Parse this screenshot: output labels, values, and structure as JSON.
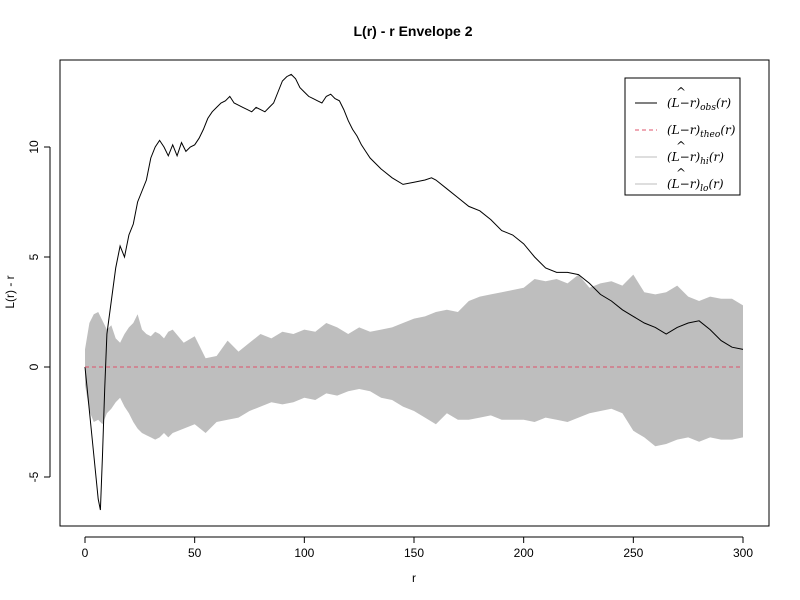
{
  "chart_data": {
    "type": "line",
    "title": "L(r) - r Envelope 2",
    "xlabel": "r",
    "ylabel": "L(r) - r",
    "xlim": [
      0,
      300
    ],
    "ylim": [
      -7,
      14
    ],
    "x_ticks": [
      0,
      50,
      100,
      150,
      200,
      250,
      300
    ],
    "x_tick_labels": [
      "0",
      "50",
      "100",
      "150",
      "200",
      "250",
      "300"
    ],
    "y_ticks": [
      -5,
      0,
      5,
      10
    ],
    "y_tick_labels": [
      "-5",
      "0",
      "5",
      "10"
    ],
    "legend": {
      "position": "top-right",
      "entries": [
        {
          "label_main": "(L",
          "label_hat": "^",
          "label_dash": "−r)",
          "label_sub": "obs",
          "label_tail": "(r)",
          "color": "#000000",
          "style": "solid"
        },
        {
          "label_main": "(L",
          "label_hat": "",
          "label_dash": "−r)",
          "label_sub": "theo",
          "label_tail": "(r)",
          "color": "#df536b",
          "style": "dashed"
        },
        {
          "label_main": "(L",
          "label_hat": "^",
          "label_dash": "−r)",
          "label_sub": "hi",
          "label_tail": "(r)",
          "color": "#bebebe",
          "style": "solid"
        },
        {
          "label_main": "(L",
          "label_hat": "^",
          "label_dash": "−r)",
          "label_sub": "lo",
          "label_tail": "(r)",
          "color": "#bebebe",
          "style": "solid"
        }
      ]
    },
    "series": [
      {
        "name": "obs",
        "color": "#000000",
        "style": "solid",
        "x": [
          0,
          2,
          4,
          6,
          7,
          8,
          9,
          10,
          12,
          14,
          16,
          18,
          20,
          22,
          24,
          26,
          28,
          30,
          32,
          34,
          36,
          38,
          40,
          42,
          44,
          46,
          48,
          50,
          52,
          54,
          56,
          58,
          60,
          62,
          64,
          66,
          68,
          70,
          72,
          74,
          76,
          78,
          80,
          82,
          84,
          86,
          88,
          90,
          92,
          94,
          96,
          98,
          100,
          102,
          104,
          106,
          108,
          110,
          112,
          114,
          116,
          118,
          120,
          122,
          124,
          126,
          128,
          130,
          135,
          140,
          145,
          150,
          155,
          158,
          160,
          165,
          170,
          175,
          180,
          185,
          190,
          195,
          200,
          205,
          210,
          215,
          220,
          225,
          230,
          235,
          240,
          245,
          250,
          255,
          260,
          265,
          270,
          275,
          280,
          285,
          290,
          295,
          300
        ],
        "y": [
          0,
          -2,
          -4,
          -6,
          -6.5,
          -4,
          -1,
          1.5,
          3,
          4.5,
          5.5,
          5,
          6,
          6.5,
          7.5,
          8,
          8.5,
          9.5,
          10,
          10.3,
          10,
          9.6,
          10.1,
          9.6,
          10.2,
          9.8,
          10,
          10.1,
          10.4,
          10.8,
          11.3,
          11.6,
          11.8,
          12,
          12.1,
          12.3,
          12,
          11.9,
          11.8,
          11.7,
          11.6,
          11.8,
          11.7,
          11.6,
          11.8,
          12,
          12.5,
          13,
          13.2,
          13.3,
          13.1,
          12.7,
          12.5,
          12.3,
          12.2,
          12.1,
          12,
          12.3,
          12.4,
          12.2,
          12.1,
          11.7,
          11.2,
          10.8,
          10.5,
          10.1,
          9.8,
          9.5,
          9,
          8.6,
          8.3,
          8.4,
          8.5,
          8.6,
          8.5,
          8.1,
          7.7,
          7.3,
          7.1,
          6.7,
          6.2,
          6,
          5.6,
          5,
          4.5,
          4.3,
          4.3,
          4.2,
          3.8,
          3.3,
          3,
          2.6,
          2.3,
          2,
          1.8,
          1.5,
          1.8,
          2,
          2.1,
          1.7,
          1.2,
          0.9,
          0.8
        ]
      },
      {
        "name": "theo",
        "color": "#df536b",
        "style": "dashed",
        "x": [
          0,
          300
        ],
        "y": [
          0,
          0
        ]
      }
    ],
    "envelope": {
      "color": "#bebebe",
      "x": [
        0,
        2,
        4,
        6,
        8,
        10,
        12,
        14,
        16,
        18,
        20,
        22,
        24,
        26,
        28,
        30,
        32,
        34,
        36,
        38,
        40,
        45,
        50,
        55,
        60,
        65,
        70,
        75,
        80,
        85,
        90,
        95,
        100,
        105,
        110,
        115,
        120,
        125,
        130,
        135,
        140,
        145,
        150,
        155,
        160,
        165,
        170,
        175,
        180,
        185,
        190,
        195,
        200,
        205,
        210,
        215,
        220,
        225,
        230,
        235,
        240,
        245,
        250,
        255,
        260,
        265,
        270,
        275,
        280,
        285,
        290,
        295,
        300
      ],
      "hi": [
        0.8,
        2,
        2.4,
        2.5,
        2.1,
        1.7,
        1.9,
        1.3,
        1.1,
        1.5,
        1.8,
        2,
        2.4,
        1.7,
        1.5,
        1.4,
        1.6,
        1.5,
        1.3,
        1.6,
        1.7,
        1.1,
        1.4,
        0.4,
        0.5,
        1.2,
        0.7,
        1.1,
        1.5,
        1.3,
        1.6,
        1.5,
        1.7,
        1.6,
        2,
        1.8,
        1.5,
        1.8,
        1.6,
        1.7,
        1.8,
        2,
        2.2,
        2.3,
        2.5,
        2.6,
        2.5,
        3,
        3.2,
        3.3,
        3.4,
        3.5,
        3.6,
        4,
        3.9,
        4,
        3.8,
        4.2,
        3.6,
        3.8,
        3.9,
        3.7,
        4.2,
        3.4,
        3.3,
        3.4,
        3.7,
        3.2,
        3,
        3.2,
        3.1,
        3.1,
        2.8
      ],
      "lo": [
        -0.8,
        -2,
        -2.5,
        -2.4,
        -2.6,
        -2.1,
        -1.9,
        -1.6,
        -1.4,
        -1.8,
        -2.1,
        -2.5,
        -2.8,
        -3,
        -3.1,
        -3.2,
        -3.3,
        -3.2,
        -3,
        -3.2,
        -3,
        -2.8,
        -2.6,
        -3,
        -2.5,
        -2.4,
        -2.3,
        -2,
        -1.8,
        -1.6,
        -1.7,
        -1.6,
        -1.4,
        -1.5,
        -1.2,
        -1.3,
        -1.1,
        -1,
        -1.1,
        -1.4,
        -1.5,
        -1.8,
        -2,
        -2.3,
        -2.6,
        -2.1,
        -2.4,
        -2.4,
        -2.3,
        -2.2,
        -2.4,
        -2.4,
        -2.4,
        -2.5,
        -2.3,
        -2.4,
        -2.5,
        -2.3,
        -2.1,
        -2,
        -1.9,
        -2.1,
        -2.9,
        -3.2,
        -3.6,
        -3.5,
        -3.3,
        -3.2,
        -3.4,
        -3.2,
        -3.3,
        -3.3,
        -3.2
      ]
    }
  }
}
